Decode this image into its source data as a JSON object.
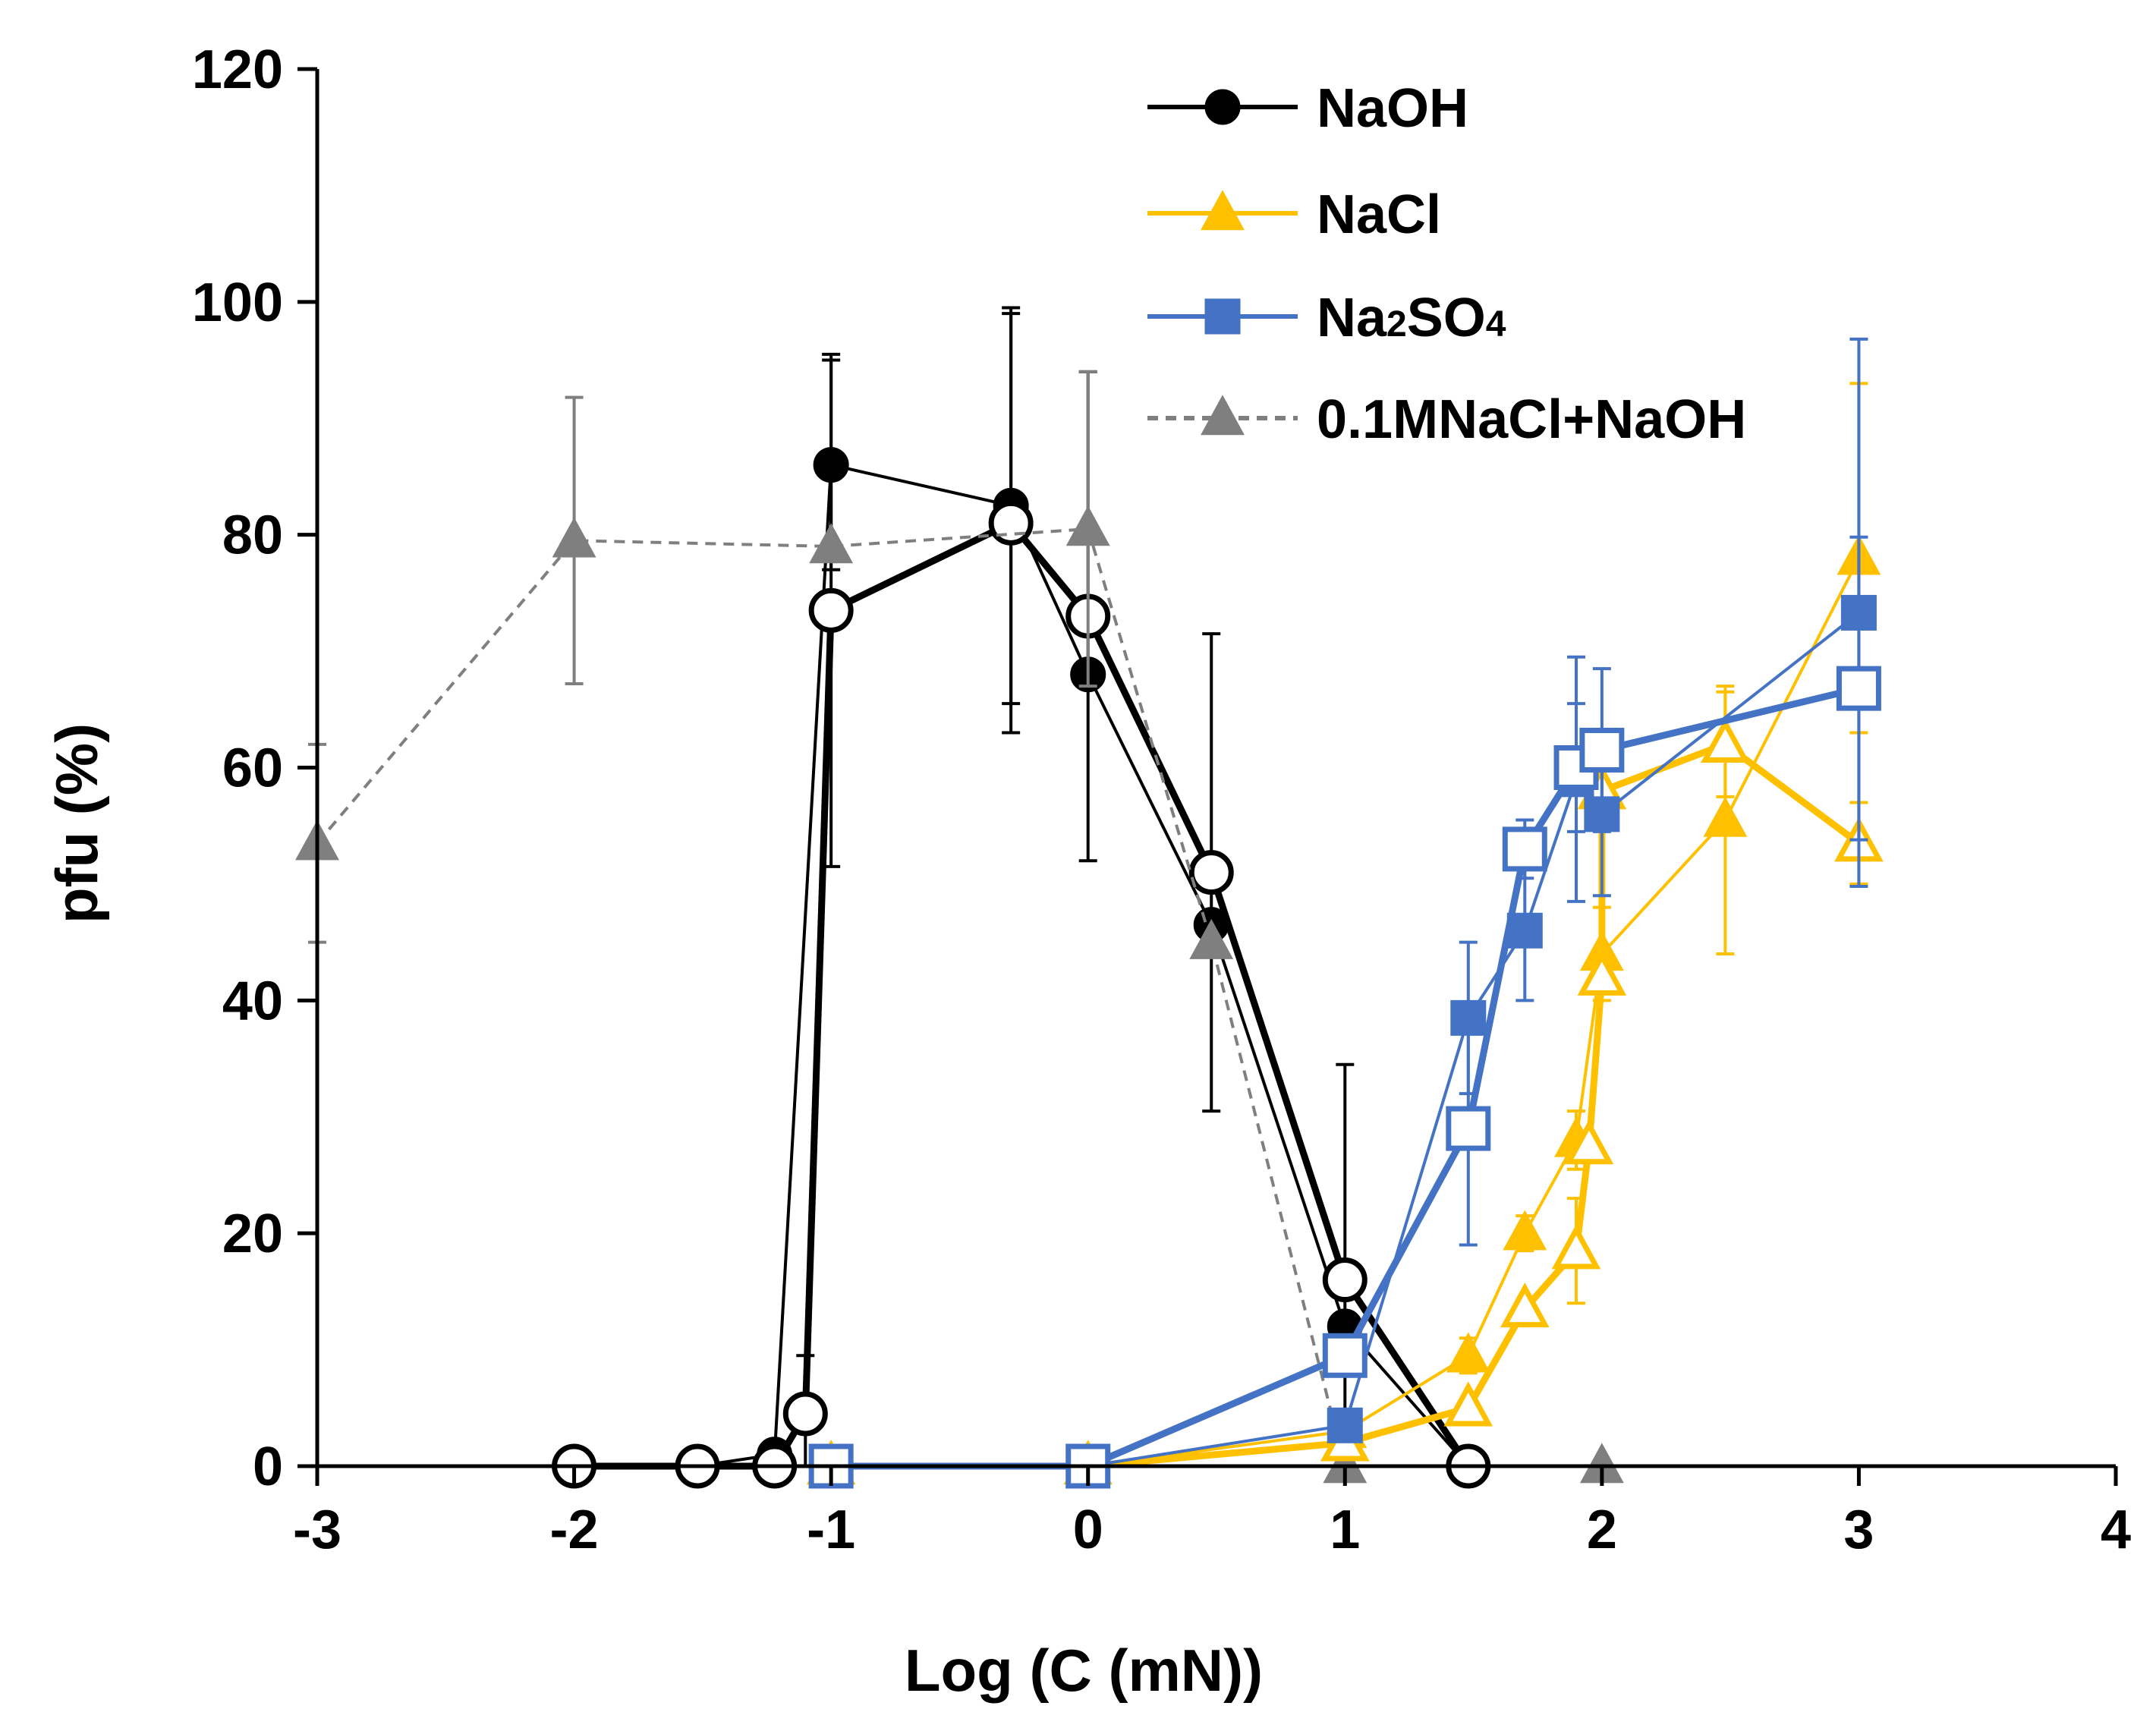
{
  "chart_data": {
    "type": "line",
    "title": "",
    "xlabel": "Log (C (mN))",
    "ylabel": "pfu (%)",
    "xlim": [
      -3,
      4
    ],
    "ylim": [
      0,
      120
    ],
    "xticks": [
      "-3",
      "-2",
      "-1",
      "0",
      "1",
      "2",
      "3",
      "4"
    ],
    "yticks": [
      "0",
      "20",
      "40",
      "60",
      "80",
      "100",
      "120"
    ],
    "grid": false,
    "legend_position": "top-right",
    "colors": {
      "black": "#000000",
      "yellow": "#FFC000",
      "blue": "#4472C4",
      "gray": "#7F7F7F"
    },
    "legend": [
      {
        "label": "NaOH",
        "color": "#000000",
        "marker": "circle",
        "dash": false
      },
      {
        "label": "NaCl",
        "color": "#FFC000",
        "marker": "triangle",
        "dash": false
      },
      {
        "label": "Na",
        "sub": "2",
        "mid": "SO",
        "sub2": "4",
        "color": "#4472C4",
        "marker": "square",
        "dash": false
      },
      {
        "label": "0.1MNaCl+NaOH",
        "color": "#7F7F7F",
        "marker": "triangle",
        "dash": true
      }
    ],
    "series": [
      {
        "name": "NaOH (filled)",
        "color": "#000000",
        "marker": "circle",
        "filled": true,
        "line_width": 4,
        "dash": false,
        "points": [
          {
            "x": -2,
            "y": 0
          },
          {
            "x": -1.52,
            "y": 0
          },
          {
            "x": -1.22,
            "y": 1
          },
          {
            "x": -1.0,
            "y": 86,
            "err": 9
          },
          {
            "x": -0.3,
            "y": 82.5,
            "err": 17
          },
          {
            "x": 0,
            "y": 68
          },
          {
            "x": 0.48,
            "y": 46.5
          },
          {
            "x": 1,
            "y": 12
          },
          {
            "x": 1.48,
            "y": 0
          }
        ]
      },
      {
        "name": "NaOH (open)",
        "color": "#000000",
        "marker": "circle",
        "filled": false,
        "line_width": 9,
        "dash": false,
        "points": [
          {
            "x": -2,
            "y": 0
          },
          {
            "x": -1.52,
            "y": 0
          },
          {
            "x": -1.22,
            "y": 0
          },
          {
            "x": -1.1,
            "y": 4.5,
            "err": 5
          },
          {
            "x": -1.0,
            "y": 73.5,
            "err": 22
          },
          {
            "x": -0.3,
            "y": 81,
            "err": 18
          },
          {
            "x": 0,
            "y": 73,
            "err": 21
          },
          {
            "x": 0.48,
            "y": 51,
            "err": 20.5
          },
          {
            "x": 1,
            "y": 16,
            "err": 18.5
          },
          {
            "x": 1.48,
            "y": 0
          }
        ]
      },
      {
        "name": "0.1MNaCl+NaOH",
        "color": "#7F7F7F",
        "marker": "triangle",
        "filled": true,
        "line_width": 4,
        "dash": true,
        "points": [
          {
            "x": -3,
            "y": 53.5,
            "err": 8.5
          },
          {
            "x": -2,
            "y": 79.5,
            "err": 12.3
          },
          {
            "x": -1,
            "y": 79,
            "err": 0
          },
          {
            "x": 0,
            "y": 80.5,
            "err": 13.5
          },
          {
            "x": 0.48,
            "y": 45
          },
          {
            "x": 1,
            "y": 0
          },
          {
            "x": 2,
            "y": 0
          }
        ]
      },
      {
        "name": "NaCl (filled)",
        "color": "#FFC000",
        "marker": "triangle",
        "filled": true,
        "line_width": 4,
        "dash": false,
        "points": [
          {
            "x": -1,
            "y": 0
          },
          {
            "x": 0,
            "y": 0
          },
          {
            "x": 1,
            "y": 3
          },
          {
            "x": 1.48,
            "y": 9.5,
            "err": 1.5
          },
          {
            "x": 1.7,
            "y": 20,
            "err": 1.5
          },
          {
            "x": 1.9,
            "y": 28,
            "err": 2.5
          },
          {
            "x": 2,
            "y": 44,
            "err": 4
          },
          {
            "x": 2.48,
            "y": 55.5,
            "err": 11.5
          },
          {
            "x": 3,
            "y": 78,
            "err": 15
          }
        ]
      },
      {
        "name": "NaCl (open)",
        "color": "#FFC000",
        "marker": "triangle",
        "filled": false,
        "line_width": 9,
        "dash": false,
        "points": [
          {
            "x": -1,
            "y": 0
          },
          {
            "x": 0,
            "y": 0
          },
          {
            "x": 1,
            "y": 2
          },
          {
            "x": 1.48,
            "y": 5
          },
          {
            "x": 1.7,
            "y": 13.5
          },
          {
            "x": 1.9,
            "y": 18.5,
            "err": 4.5
          },
          {
            "x": 1.95,
            "y": 27.5
          },
          {
            "x": 2,
            "y": 42
          },
          {
            "x": 2.0,
            "y": 58,
            "err": 3
          },
          {
            "x": 2.48,
            "y": 62,
            "err": 4.5
          },
          {
            "x": 3,
            "y": 53.5,
            "err": 3.5
          }
        ]
      },
      {
        "name": "Na2SO4 (filled)",
        "color": "#4472C4",
        "marker": "square",
        "filled": true,
        "line_width": 4,
        "dash": false,
        "points": [
          {
            "x": -1,
            "y": 0
          },
          {
            "x": 0,
            "y": 0
          },
          {
            "x": 1,
            "y": 3.5
          },
          {
            "x": 1.48,
            "y": 38.5,
            "err": 6.5
          },
          {
            "x": 1.7,
            "y": 46,
            "err": 6
          },
          {
            "x": 1.9,
            "y": 59,
            "err": 10.5
          },
          {
            "x": 2,
            "y": 56,
            "err": 7
          },
          {
            "x": 3,
            "y": 73.3,
            "err": 23.5
          }
        ]
      },
      {
        "name": "Na2SO4 (open)",
        "color": "#4472C4",
        "marker": "square",
        "filled": false,
        "line_width": 9,
        "dash": false,
        "points": [
          {
            "x": -1,
            "y": 0
          },
          {
            "x": 0,
            "y": 0
          },
          {
            "x": 1,
            "y": 9.5
          },
          {
            "x": 1.48,
            "y": 29,
            "err": 10
          },
          {
            "x": 1.7,
            "y": 53,
            "err": 2.5
          },
          {
            "x": 1.9,
            "y": 60,
            "err": 5.5
          },
          {
            "x": 2,
            "y": 61.5,
            "err": 7
          },
          {
            "x": 3,
            "y": 66.8,
            "err": 13
          }
        ]
      }
    ]
  }
}
